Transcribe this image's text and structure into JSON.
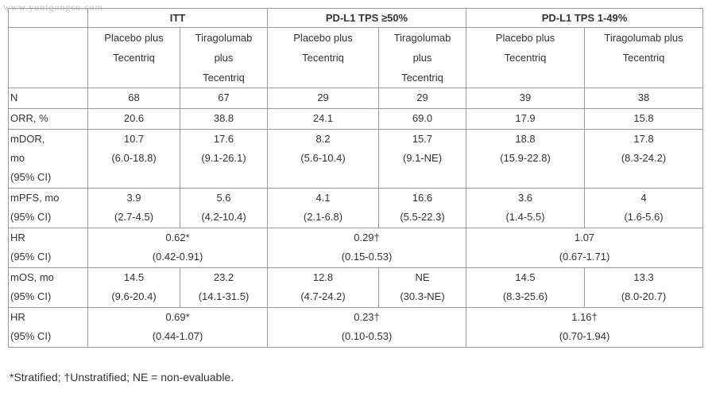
{
  "watermark": "www.yunigongsu.com",
  "table": {
    "groups": [
      "ITT",
      "PD-L1 TPS ≥50%",
      "PD-L1 TPS 1-49%"
    ],
    "arms": [
      [
        "Placebo plus",
        "Tecentriq"
      ],
      [
        "Tiragolumab",
        "plus",
        "Tecentriq"
      ],
      [
        "Placebo plus",
        "Tecentriq"
      ],
      [
        "Tiragolumab",
        "plus",
        "Tecentriq"
      ],
      [
        "Placebo plus",
        "Tecentriq"
      ],
      [
        "Tiragolumab plus",
        "Tecentriq"
      ]
    ],
    "rows": [
      {
        "label": [
          "N"
        ],
        "cells": [
          [
            "68"
          ],
          [
            "67"
          ],
          [
            "29"
          ],
          [
            "29"
          ],
          [
            "39"
          ],
          [
            "38"
          ]
        ]
      },
      {
        "label": [
          "ORR, %"
        ],
        "cells": [
          [
            "20.6"
          ],
          [
            "38.8"
          ],
          [
            "24.1"
          ],
          [
            "69.0"
          ],
          [
            "17.9"
          ],
          [
            "15.8"
          ]
        ]
      },
      {
        "label": [
          "mDOR,",
          "mo",
          "(95% CI)"
        ],
        "cells": [
          [
            "10.7",
            "(6.0-18.8)"
          ],
          [
            "17.6",
            "(9.1-26.1)"
          ],
          [
            "8.2",
            "(5.6-10.4)"
          ],
          [
            "15.7",
            "(9.1-NE)"
          ],
          [
            "18.8",
            "(15.9-22.8)"
          ],
          [
            "17.8",
            "(8.3-24.2)"
          ]
        ]
      },
      {
        "label": [
          "mPFS, mo",
          "(95% CI)"
        ],
        "cells": [
          [
            "3.9",
            "(2.7-4.5)"
          ],
          [
            "5.6",
            "(4.2-10.4)"
          ],
          [
            "4.1",
            "(2.1-6.8)"
          ],
          [
            "16.6",
            "(5.5-22.3)"
          ],
          [
            "3.6",
            "(1.4-5.5)"
          ],
          [
            "4",
            "(1.6-5.6)"
          ]
        ]
      },
      {
        "label": [
          "HR",
          "(95% CI)"
        ],
        "cells": [
          [
            "0.62*",
            "(0.42-0.91)"
          ],
          [
            "0.29†",
            "(0.15-0.53)"
          ],
          [
            "1.07",
            "(0.67-1.71)"
          ]
        ]
      },
      {
        "label": [
          "mOS, mo",
          "(95% CI)"
        ],
        "cells": [
          [
            "14.5",
            "(9.6-20.4)"
          ],
          [
            "23.2",
            "(14.1-31.5)"
          ],
          [
            "12.8",
            "(4.7-24.2)"
          ],
          [
            "NE",
            "(30.3-NE)"
          ],
          [
            "14.5",
            "(8.3-25.6)"
          ],
          [
            "13.3",
            "(8.0-20.7)"
          ]
        ]
      },
      {
        "label": [
          "HR",
          "(95% CI)"
        ],
        "cells": [
          [
            "0.69*",
            "(0.44-1.07)"
          ],
          [
            "0.23†",
            "(0.10-0.53)"
          ],
          [
            "1.16†",
            "(0.70-1.94)"
          ]
        ]
      }
    ]
  },
  "footnote": "*Stratified; †Unstratified; NE = non-evaluable."
}
